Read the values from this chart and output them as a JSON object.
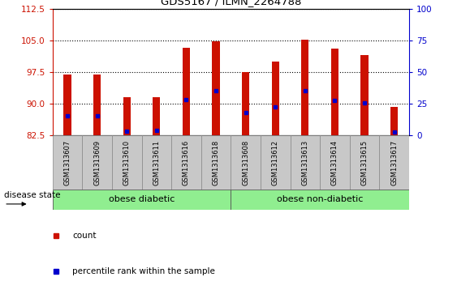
{
  "title": "GDS5167 / ILMN_2264788",
  "samples": [
    "GSM1313607",
    "GSM1313609",
    "GSM1313610",
    "GSM1313611",
    "GSM1313616",
    "GSM1313618",
    "GSM1313608",
    "GSM1313612",
    "GSM1313613",
    "GSM1313614",
    "GSM1313615",
    "GSM1313617"
  ],
  "bar_tops": [
    97.0,
    97.0,
    91.5,
    91.5,
    103.2,
    104.7,
    97.5,
    100.0,
    105.2,
    103.0,
    101.5,
    89.3
  ],
  "blue_dots": [
    87.2,
    87.2,
    83.5,
    83.7,
    91.0,
    93.0,
    87.8,
    89.2,
    93.0,
    90.8,
    90.2,
    83.2
  ],
  "bar_bottom": 82.5,
  "ylim_left": [
    82.5,
    112.5
  ],
  "ylim_right": [
    0,
    100
  ],
  "yticks_left": [
    82.5,
    90.0,
    97.5,
    105.0,
    112.5
  ],
  "yticks_right": [
    0,
    25,
    50,
    75,
    100
  ],
  "bar_color": "#cc1100",
  "dot_color": "#0000cc",
  "group1_label": "obese diabetic",
  "group2_label": "obese non-diabetic",
  "group1_count": 6,
  "group2_count": 6,
  "group_bg_color": "#90ee90",
  "tick_bg_color": "#c8c8c8",
  "legend_count": "count",
  "legend_percentile": "percentile rank within the sample",
  "disease_state_label": "disease state",
  "figsize": [
    5.63,
    3.63
  ],
  "dpi": 100,
  "bar_width": 0.25
}
